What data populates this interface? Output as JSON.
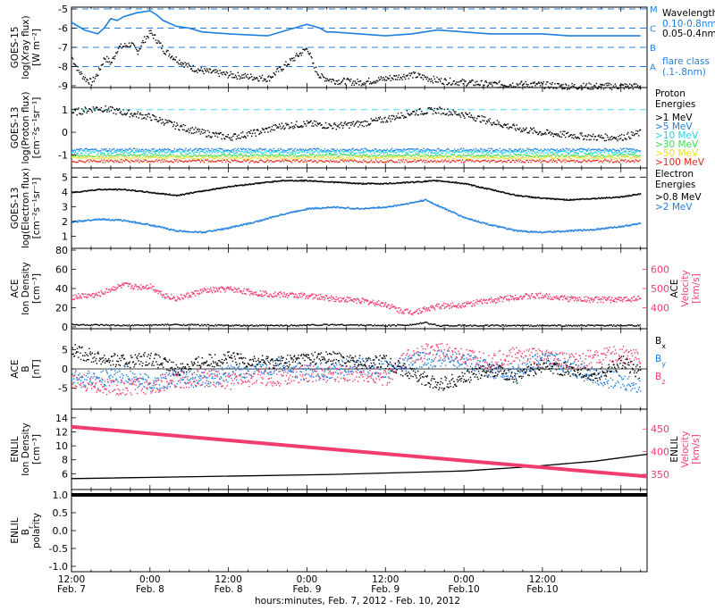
{
  "colors": {
    "black": "#000000",
    "blue": "#1e7fe0",
    "pink": "#f03c6e",
    "cyan": "#22d3e6",
    "green": "#3ddc52",
    "yellow": "#e8e01e",
    "orange": "#f08a1e",
    "red": "#e02a1e",
    "dash_blue": "#2a7fd6"
  },
  "xaxis": {
    "ticks": [
      {
        "time": "12:00",
        "day": "Feb. 7"
      },
      {
        "time": "0:00",
        "day": "Feb. 8"
      },
      {
        "time": "12:00",
        "day": "Feb. 8"
      },
      {
        "time": "0:00",
        "day": "Feb. 9"
      },
      {
        "time": "12:00",
        "day": "Feb. 9"
      },
      {
        "time": "0:00",
        "day": "Feb.10"
      },
      {
        "time": "12:00",
        "day": "Feb.10"
      }
    ],
    "title": "hours:minutes, Feb.  7, 2012 - Feb. 10, 2012"
  },
  "panels": {
    "xray": {
      "ylabel": [
        "GOES-15",
        "log(Xray flux)",
        "[W m⁻²]"
      ],
      "yticks": [
        "-5",
        "-6",
        "-7",
        "-8",
        "-9"
      ],
      "class_letters": [
        "M",
        "C",
        "B",
        "A"
      ],
      "legend_title": "Wavelength",
      "legend_items": [
        {
          "label": "0.10-0.8nm",
          "color": "#1e7fe0"
        },
        {
          "label": "0.05-0.4nm",
          "color": "#000000"
        }
      ],
      "flare_label": "flare class",
      "flare_range": "(.1-.8nm)"
    },
    "proton": {
      "ylabel": [
        "GOES-13",
        "log(Proton flux)",
        "[cm⁻²s⁻¹sr⁻¹]"
      ],
      "yticks": [
        "1",
        "0",
        "-1"
      ],
      "legend_title": [
        "Proton",
        "Energies"
      ],
      "legend_items": [
        {
          "label": ">1 MeV",
          "color": "#000000"
        },
        {
          "label": ">5 MeV",
          "color": "#1e7fe0"
        },
        {
          "label": ">10 MeV",
          "color": "#22d3e6"
        },
        {
          "label": ">30 MeV",
          "color": "#3ddc52"
        },
        {
          "label": ">50 MeV",
          "color": "#e8e01e"
        },
        {
          "label": ">100 MeV",
          "color": "#e02a1e"
        }
      ]
    },
    "electron": {
      "ylabel": [
        "GOES-13",
        "log(Electron flux)",
        "[cm⁻²s⁻¹sr⁻¹]"
      ],
      "yticks": [
        "5",
        "4",
        "3",
        "2",
        "1"
      ],
      "legend_title": [
        "Electron",
        "Energies"
      ],
      "legend_items": [
        {
          "label": ">0.8 MeV",
          "color": "#000000"
        },
        {
          "label": ">2 MeV",
          "color": "#1e7fe0"
        }
      ]
    },
    "ace_plasma": {
      "ylabel": [
        "ACE",
        "Ion Density",
        "[cm⁻³]"
      ],
      "yticks": [
        "80",
        "60",
        "40",
        "20",
        "0"
      ],
      "ylabel_right": [
        "ACE",
        "Velocity",
        "[km/s]"
      ],
      "yticks_right": [
        "600",
        "500",
        "400"
      ]
    },
    "ace_b": {
      "ylabel": [
        "ACE",
        "B",
        "[nT]"
      ],
      "yticks": [
        "5",
        "0",
        "-5"
      ],
      "legend_items": [
        {
          "label": "B",
          "sub": "x",
          "color": "#000000"
        },
        {
          "label": "B",
          "sub": "y",
          "color": "#1e7fe0"
        },
        {
          "label": "B",
          "sub": "z",
          "color": "#f03c6e"
        }
      ]
    },
    "enlil_plasma": {
      "ylabel": [
        "ENLIL",
        "Ion Density",
        "[cm⁻³]"
      ],
      "yticks": [
        "14",
        "12",
        "10",
        "8",
        "6"
      ],
      "ylabel_right": [
        "ENLIL",
        "Velocity",
        "[km/s]"
      ],
      "yticks_right": [
        "450",
        "400",
        "350"
      ]
    },
    "enlil_polarity": {
      "ylabel": [
        "ENLIL",
        "B",
        "polarity"
      ],
      "ylabel_sub": "r",
      "yticks": [
        "1.0",
        "0.5",
        "0.0",
        "-0.5",
        "-1.0"
      ]
    }
  },
  "chart_data": [
    {
      "type": "line",
      "panel": "xray",
      "x_unit": "hours from Feb. 7 12:00",
      "xlim": [
        0,
        88
      ],
      "ylim": [
        -9,
        -5
      ],
      "series": [
        {
          "name": "0.10-0.8nm",
          "color": "#1e7fe0",
          "x": [
            0,
            2,
            4,
            5,
            6,
            7,
            8,
            10,
            12,
            13,
            14,
            16,
            18,
            20,
            24,
            30,
            36,
            38,
            39,
            40,
            44,
            48,
            52,
            56,
            60,
            64,
            68,
            72,
            76,
            80,
            84,
            87
          ],
          "y": [
            -5.7,
            -6.1,
            -6.3,
            -6.0,
            -5.5,
            -5.6,
            -5.4,
            -5.2,
            -5.1,
            -5.3,
            -5.6,
            -5.9,
            -6.0,
            -6.2,
            -6.3,
            -6.4,
            -5.8,
            -6.0,
            -6.2,
            -6.2,
            -6.3,
            -6.4,
            -6.3,
            -6.1,
            -6.2,
            -6.3,
            -6.3,
            -6.3,
            -6.4,
            -6.4,
            -6.4,
            -6.4
          ]
        },
        {
          "name": "0.05-0.4nm",
          "color": "#000000",
          "x": [
            0,
            1,
            2,
            3,
            4,
            5,
            6,
            7,
            8,
            9,
            10,
            11,
            12,
            13,
            14,
            16,
            18,
            20,
            24,
            30,
            36,
            37,
            38,
            40,
            44,
            48,
            52,
            56,
            60,
            64,
            70,
            76,
            82,
            87
          ],
          "y": [
            -7.5,
            -8.2,
            -8.6,
            -8.8,
            -8.3,
            -7.5,
            -7.8,
            -7.0,
            -6.9,
            -6.8,
            -7.2,
            -6.6,
            -6.2,
            -6.6,
            -7.1,
            -7.6,
            -8.0,
            -8.2,
            -8.4,
            -8.6,
            -7.0,
            -8.0,
            -8.5,
            -8.7,
            -8.8,
            -8.6,
            -8.4,
            -8.7,
            -8.8,
            -8.9,
            -8.9,
            -9.0,
            -9.0,
            -9.0
          ]
        }
      ]
    },
    {
      "type": "scatter",
      "panel": "proton",
      "xlim": [
        0,
        88
      ],
      "ylim": [
        -1.5,
        1.9
      ],
      "series": [
        {
          "name": ">1 MeV",
          "color": "#000000",
          "x": [
            0,
            4,
            8,
            12,
            16,
            20,
            24,
            28,
            32,
            36,
            40,
            44,
            48,
            52,
            56,
            60,
            64,
            68,
            72,
            76,
            80,
            84,
            87
          ],
          "y": [
            0.9,
            1.1,
            0.9,
            0.7,
            0.3,
            0.0,
            -0.2,
            0.0,
            0.3,
            0.4,
            0.3,
            0.4,
            0.6,
            0.9,
            1.0,
            0.8,
            0.5,
            0.2,
            0.0,
            -0.1,
            -0.2,
            -0.2,
            0.0
          ]
        },
        {
          "name": ">5 MeV",
          "color": "#1e7fe0",
          "x": [
            0,
            87
          ],
          "y": [
            -0.75,
            -0.75
          ]
        },
        {
          "name": ">10 MeV",
          "color": "#22d3e6",
          "x": [
            0,
            87
          ],
          "y": [
            -0.85,
            -0.85
          ]
        },
        {
          "name": ">30 MeV",
          "color": "#3ddc52",
          "x": [
            0,
            87
          ],
          "y": [
            -1.0,
            -1.0
          ]
        },
        {
          "name": ">50 MeV",
          "color": "#e8e01e",
          "x": [
            0,
            87
          ],
          "y": [
            -1.1,
            -1.1
          ]
        },
        {
          "name": ">100 MeV",
          "color": "#e02a1e",
          "x": [
            0,
            87
          ],
          "y": [
            -1.25,
            -1.25
          ]
        }
      ]
    },
    {
      "type": "line",
      "panel": "electron",
      "xlim": [
        0,
        88
      ],
      "ylim": [
        0.3,
        5.5
      ],
      "series": [
        {
          "name": ">0.8 MeV",
          "color": "#000000",
          "x": [
            0,
            4,
            8,
            12,
            16,
            20,
            24,
            28,
            32,
            36,
            40,
            44,
            48,
            52,
            56,
            60,
            64,
            68,
            72,
            76,
            80,
            84,
            87
          ],
          "y": [
            4.0,
            4.2,
            4.2,
            4.0,
            3.8,
            4.1,
            4.4,
            4.6,
            4.8,
            4.8,
            4.7,
            4.6,
            4.6,
            4.7,
            4.8,
            4.6,
            4.2,
            3.8,
            3.6,
            3.5,
            3.6,
            3.7,
            3.9
          ]
        },
        {
          "name": ">2 MeV",
          "color": "#1e7fe0",
          "x": [
            0,
            4,
            8,
            12,
            16,
            20,
            24,
            28,
            32,
            36,
            40,
            44,
            48,
            52,
            54,
            56,
            58,
            60,
            64,
            68,
            72,
            76,
            80,
            84,
            87
          ],
          "y": [
            2.0,
            2.2,
            2.1,
            1.8,
            1.4,
            1.3,
            1.6,
            2.0,
            2.5,
            2.9,
            3.0,
            2.9,
            3.0,
            3.3,
            3.5,
            3.1,
            2.7,
            2.3,
            1.8,
            1.4,
            1.3,
            1.4,
            1.5,
            1.7,
            1.9
          ]
        }
      ]
    },
    {
      "type": "scatter",
      "panel": "ace_plasma",
      "xlim": [
        0,
        88
      ],
      "series": [
        {
          "name": "Ion Density",
          "color": "#000000",
          "axis": "left",
          "ylim": [
            0,
            80
          ],
          "x": [
            0,
            8,
            16,
            24,
            32,
            40,
            48,
            52,
            54,
            56,
            60,
            64,
            70,
            76,
            82,
            87
          ],
          "y": [
            3,
            2,
            3,
            2,
            2,
            3,
            2,
            3,
            5,
            2,
            2,
            2,
            2,
            2,
            2,
            2
          ]
        },
        {
          "name": "Velocity",
          "color": "#f03c6e",
          "axis": "right",
          "ylim": [
            300,
            700
          ],
          "x": [
            0,
            4,
            6,
            8,
            10,
            12,
            14,
            16,
            20,
            24,
            28,
            32,
            36,
            40,
            44,
            48,
            50,
            52,
            54,
            56,
            60,
            64,
            68,
            72,
            76,
            80,
            84,
            87
          ],
          "y": [
            460,
            470,
            500,
            520,
            510,
            515,
            470,
            450,
            490,
            500,
            480,
            470,
            465,
            450,
            440,
            420,
            390,
            380,
            395,
            410,
            420,
            440,
            460,
            465,
            450,
            445,
            445,
            455
          ]
        }
      ]
    },
    {
      "type": "scatter",
      "panel": "ace_b",
      "xlim": [
        0,
        88
      ],
      "ylim": [
        -10,
        10
      ],
      "series": [
        {
          "name": "Bx",
          "color": "#000000",
          "x": [
            0,
            4,
            8,
            12,
            16,
            20,
            24,
            28,
            32,
            36,
            40,
            44,
            48,
            52,
            56,
            60,
            64,
            68,
            72,
            76,
            80,
            84,
            87
          ],
          "y": [
            5,
            3,
            2,
            3,
            0,
            2,
            3,
            2,
            2,
            3,
            3,
            2,
            2,
            -1,
            -4,
            -2,
            0,
            -2,
            1,
            0,
            -2,
            2,
            -1
          ]
        },
        {
          "name": "By",
          "color": "#1e7fe0",
          "x": [
            0,
            4,
            8,
            12,
            16,
            20,
            24,
            28,
            32,
            36,
            40,
            44,
            48,
            52,
            56,
            60,
            64,
            68,
            72,
            76,
            80,
            84,
            87
          ],
          "y": [
            -2,
            -3,
            -1,
            -4,
            -2,
            -3,
            -1,
            0,
            1,
            -1,
            0,
            1,
            0,
            2,
            3,
            2,
            0,
            -1,
            3,
            1,
            -2,
            -3,
            -4
          ]
        },
        {
          "name": "Bz",
          "color": "#f03c6e",
          "x": [
            0,
            4,
            8,
            12,
            16,
            20,
            24,
            28,
            32,
            36,
            40,
            44,
            48,
            52,
            56,
            60,
            64,
            68,
            72,
            76,
            80,
            84,
            87
          ],
          "y": [
            -3,
            -4,
            -5,
            -4,
            -3,
            -2,
            -3,
            -2,
            -2,
            -1,
            -1,
            -1,
            -2,
            4,
            5,
            3,
            2,
            4,
            3,
            2,
            3,
            4,
            3
          ]
        }
      ]
    },
    {
      "type": "line",
      "panel": "enlil_plasma",
      "xlim": [
        0,
        88
      ],
      "series": [
        {
          "name": "Ion Density",
          "color": "#000000",
          "axis": "left",
          "ylim": [
            4,
            15
          ],
          "x": [
            0,
            20,
            40,
            60,
            70,
            80,
            88
          ],
          "y": [
            5.3,
            5.6,
            5.9,
            6.4,
            7.0,
            7.8,
            8.8
          ]
        },
        {
          "name": "Velocity",
          "color": "#f03c6e",
          "axis": "right",
          "ylim": [
            320,
            490
          ],
          "x": [
            0,
            88
          ],
          "y": [
            455,
            345
          ]
        }
      ]
    },
    {
      "type": "line",
      "panel": "enlil_polarity",
      "xlim": [
        0,
        88
      ],
      "ylim": [
        -1.1,
        1.1
      ],
      "series": [
        {
          "name": "Br polarity",
          "color": "#000000",
          "x": [
            0,
            88
          ],
          "y": [
            1.0,
            1.0
          ]
        }
      ]
    }
  ]
}
